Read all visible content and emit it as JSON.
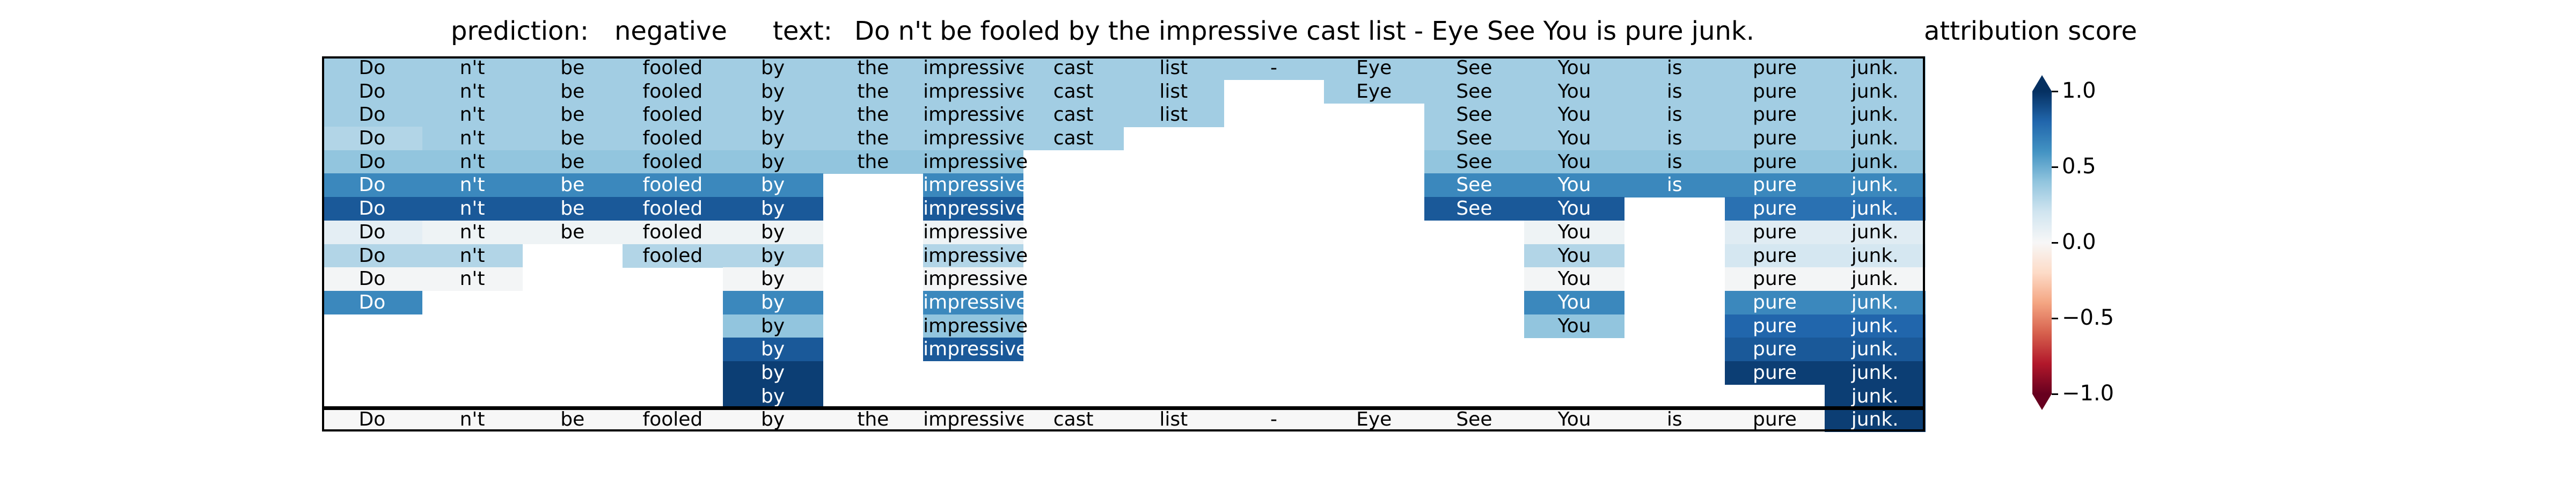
{
  "header": {
    "prediction_label": "prediction:",
    "prediction_value": "negative",
    "text_label": "text:",
    "text_value": "Do n't be fooled by the impressive cast list - Eye See You is pure junk.",
    "colorbar_title": "attribution score"
  },
  "colorbar": {
    "ticks": [
      "1.0",
      "0.5",
      "0.0",
      "−0.5",
      "−1.0"
    ],
    "tick_values": [
      1.0,
      0.5,
      0.0,
      -0.5,
      -1.0
    ],
    "colormap": "RdBu",
    "range": [
      -1.0,
      1.0
    ]
  },
  "chart_data": {
    "type": "heatmap",
    "tokens": [
      "Do",
      "n't",
      "be",
      "fooled",
      "by",
      "the",
      "impressive",
      "cast",
      "list",
      "-",
      "Eye",
      "See",
      "You",
      "is",
      "pure",
      "junk."
    ],
    "rows": [
      [
        0.35,
        0.35,
        0.35,
        0.35,
        0.35,
        0.35,
        0.35,
        0.35,
        0.35,
        0.35,
        0.35,
        0.35,
        0.35,
        0.35,
        0.35,
        0.35
      ],
      [
        0.35,
        0.35,
        0.35,
        0.35,
        0.35,
        0.35,
        0.35,
        0.35,
        0.35,
        null,
        0.35,
        0.35,
        0.35,
        0.35,
        0.35,
        0.35
      ],
      [
        0.35,
        0.35,
        0.35,
        0.35,
        0.35,
        0.35,
        0.35,
        0.35,
        0.35,
        null,
        null,
        0.35,
        0.35,
        0.35,
        0.35,
        0.35
      ],
      [
        0.3,
        0.35,
        0.35,
        0.35,
        0.35,
        0.35,
        0.35,
        0.35,
        null,
        null,
        null,
        0.35,
        0.35,
        0.35,
        0.35,
        0.35
      ],
      [
        0.4,
        0.4,
        0.4,
        0.4,
        0.4,
        0.4,
        0.4,
        null,
        null,
        null,
        null,
        0.4,
        0.4,
        0.4,
        0.4,
        0.4
      ],
      [
        0.65,
        0.65,
        0.65,
        0.65,
        0.65,
        null,
        0.65,
        null,
        null,
        null,
        null,
        0.65,
        0.65,
        0.65,
        0.65,
        0.65
      ],
      [
        0.85,
        0.85,
        0.85,
        0.85,
        0.85,
        null,
        0.85,
        null,
        null,
        null,
        null,
        0.85,
        0.85,
        null,
        0.75,
        0.75
      ],
      [
        0.1,
        0.05,
        0.05,
        0.05,
        0.05,
        null,
        0.05,
        null,
        null,
        null,
        null,
        null,
        0.05,
        null,
        0.12,
        0.12
      ],
      [
        0.3,
        0.3,
        null,
        0.3,
        0.3,
        null,
        0.3,
        null,
        null,
        null,
        null,
        null,
        0.3,
        null,
        0.18,
        0.18
      ],
      [
        0.02,
        0.02,
        null,
        null,
        0.02,
        null,
        0.02,
        null,
        null,
        null,
        null,
        null,
        0.02,
        null,
        0.02,
        0.02
      ],
      [
        0.65,
        null,
        null,
        null,
        0.65,
        null,
        0.65,
        null,
        null,
        null,
        null,
        null,
        0.65,
        null,
        0.65,
        0.65
      ],
      [
        null,
        null,
        null,
        null,
        0.4,
        null,
        0.4,
        null,
        null,
        null,
        null,
        null,
        0.4,
        null,
        0.8,
        0.8
      ],
      [
        null,
        null,
        null,
        null,
        0.85,
        null,
        0.85,
        null,
        null,
        null,
        null,
        null,
        null,
        null,
        0.85,
        0.85
      ],
      [
        null,
        null,
        null,
        null,
        0.95,
        null,
        null,
        null,
        null,
        null,
        null,
        null,
        null,
        null,
        0.95,
        0.95
      ],
      [
        null,
        null,
        null,
        null,
        0.95,
        null,
        null,
        null,
        null,
        null,
        null,
        null,
        null,
        null,
        null,
        0.95
      ],
      [
        0.0,
        0.0,
        0.0,
        0.0,
        0.0,
        0.0,
        0.0,
        0.0,
        0.0,
        0.0,
        0.0,
        0.0,
        0.0,
        0.0,
        0.0,
        0.95
      ]
    ]
  }
}
